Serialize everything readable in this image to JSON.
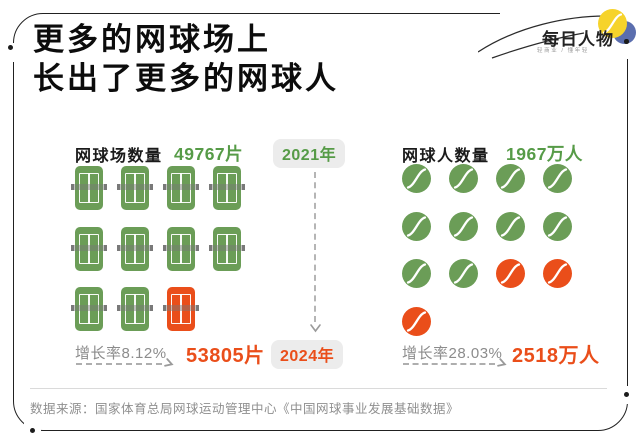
{
  "title": {
    "line1": "更多的网球场上",
    "line2": "长出了更多的网球人"
  },
  "logo": {
    "name": "每日人物",
    "tagline": "轻商业 / 懂年轻"
  },
  "colors": {
    "green": "#6b9d57",
    "orange": "#ea4e1a",
    "green_text": "#569b47",
    "orange_text": "#ea4e1a",
    "gray_text": "#8c8c8c",
    "badge_bg": "#ececec",
    "logo_yellow": "#f6d32b",
    "logo_blue": "#5b6eae"
  },
  "timeline": {
    "start_label": "2021年",
    "end_label": "2024年"
  },
  "left_chart": {
    "label": "网球场数量",
    "start_value": "49767片",
    "growth_label": "增长率8.12%",
    "end_value": "53805片",
    "rows": [
      [
        "green",
        "green",
        "green",
        "green"
      ],
      [
        "green",
        "green",
        "green",
        "green"
      ],
      [
        "green",
        "green",
        "orange"
      ]
    ]
  },
  "right_chart": {
    "label": "网球人数量",
    "start_value": "1967万人",
    "growth_label": "增长率28.03%",
    "end_value": "2518万人",
    "rows": [
      [
        "green",
        "green",
        "green",
        "green"
      ],
      [
        "green",
        "green",
        "green",
        "green"
      ],
      [
        "green",
        "green",
        "orange",
        "orange"
      ],
      [
        "orange"
      ]
    ]
  },
  "footer": {
    "source": "数据来源：国家体育总局网球运动管理中心《中国网球事业发展基础数据》"
  },
  "chart_data": [
    {
      "type": "pictogram",
      "title": "网球场数量",
      "icon": "tennis-court",
      "unit": "片",
      "categories": [
        "2021年",
        "2024年"
      ],
      "values": [
        49767,
        53805
      ],
      "growth_rate_pct": 8.12,
      "icons_total": 11,
      "icons_green_2021": 10,
      "icons_orange_added_2024": 1,
      "legend_position": "none",
      "grid": false
    },
    {
      "type": "pictogram",
      "title": "网球人数量",
      "icon": "tennis-ball",
      "unit": "万人",
      "categories": [
        "2021年",
        "2024年"
      ],
      "values": [
        1967,
        2518
      ],
      "growth_rate_pct": 28.03,
      "icons_total": 13,
      "icons_green_2021": 10,
      "icons_orange_added_2024": 3,
      "legend_position": "none",
      "grid": false
    }
  ]
}
